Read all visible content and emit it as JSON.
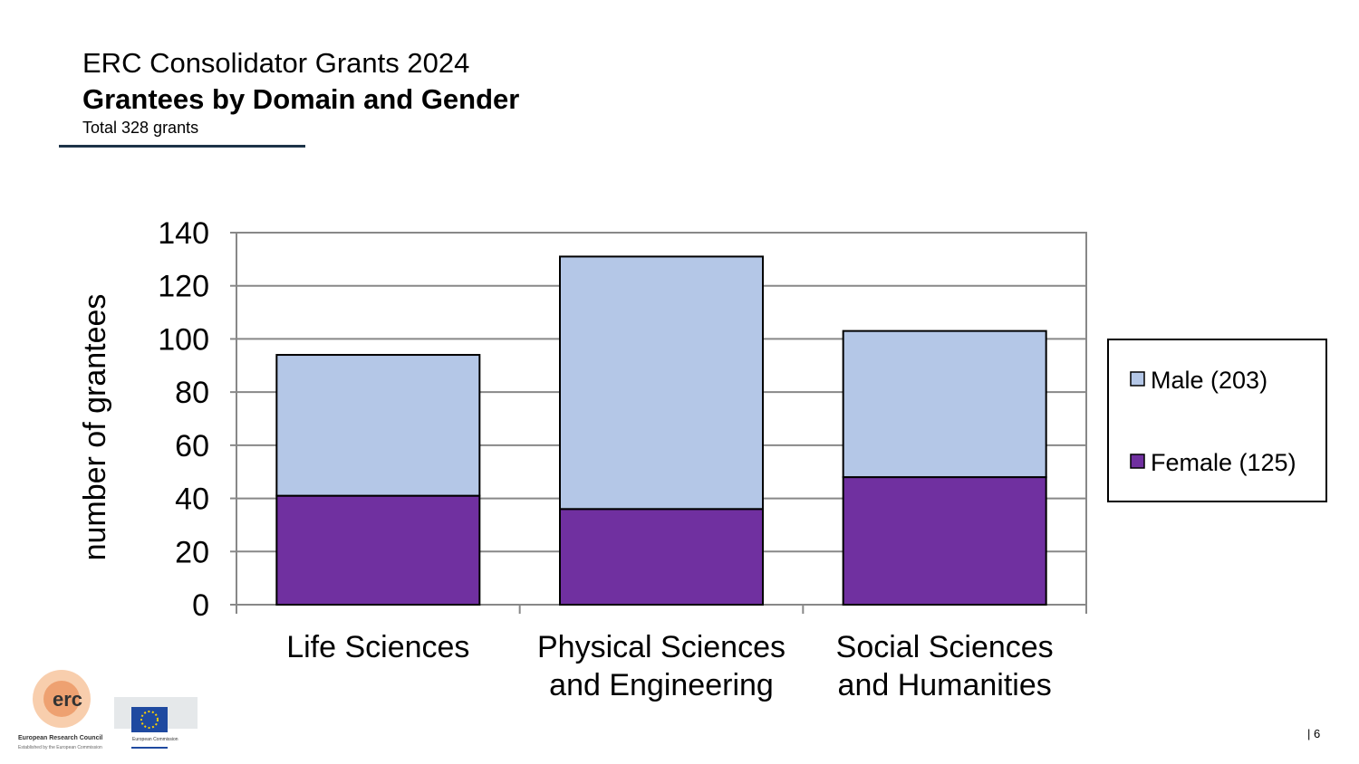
{
  "header": {
    "title": "ERC Consolidator Grants 2024",
    "subtitle": "Grantees by Domain and Gender",
    "note": "Total 328 grants"
  },
  "page_number": "| 6",
  "logos": {
    "erc": "erc",
    "erc_name": "European Research Council",
    "erc_tagline": "Established by the European Commission",
    "ec": "European Commission"
  },
  "chart_data": {
    "type": "bar",
    "stacked": true,
    "categories": [
      "Life Sciences",
      "Physical Sciences and Engineering",
      "Social Sciences and Humanities"
    ],
    "category_lines": [
      [
        "Life Sciences"
      ],
      [
        "Physical Sciences",
        "and Engineering"
      ],
      [
        "Social Sciences",
        "and Humanities"
      ]
    ],
    "series": [
      {
        "name": "Female (125)",
        "values": [
          41,
          36,
          48
        ],
        "color": "#7030a0"
      },
      {
        "name": "Male (203)",
        "values": [
          53,
          95,
          55
        ],
        "color": "#b4c7e7"
      }
    ],
    "xlabel": "",
    "ylabel": "number of grantees",
    "ylim": [
      0,
      140
    ],
    "yticks": [
      0,
      20,
      40,
      60,
      80,
      100,
      120,
      140
    ],
    "grid": true,
    "legend": "right"
  }
}
